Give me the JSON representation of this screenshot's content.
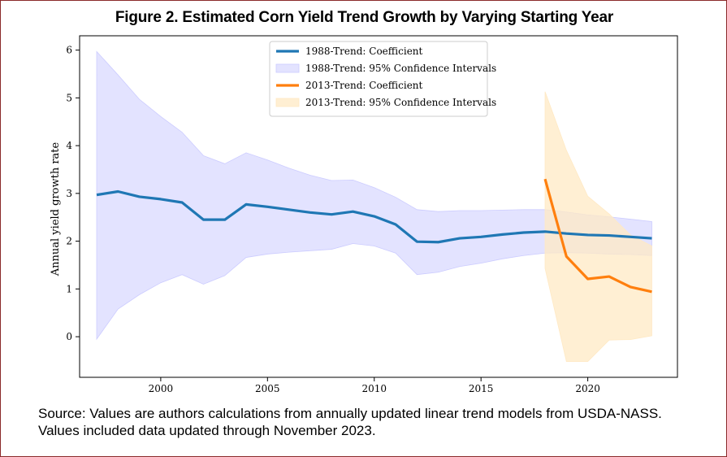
{
  "figure": {
    "title": "Figure 2. Estimated Corn Yield Trend Growth by Varying Starting Year",
    "source_line1": "Source: Values are authors calculations from annually updated linear trend models from USDA-NASS.",
    "source_line2": "Values included data updated through November 2023."
  },
  "colors": {
    "series1_line": "#1f77b4",
    "series1_band": "#ccccff",
    "series2_line": "#ff7f0e",
    "series2_band": "#ffe9c4",
    "frame_border": "#8b2a2a"
  },
  "chart_data": {
    "type": "line",
    "title": "",
    "xlabel": "",
    "ylabel": "Annual yield growth rate",
    "xlim": [
      1996.2,
      2024.2
    ],
    "ylim": [
      -0.85,
      6.3
    ],
    "xticks": [
      2000,
      2005,
      2010,
      2015,
      2020
    ],
    "yticks": [
      0,
      1,
      2,
      3,
      4,
      5,
      6
    ],
    "grid": false,
    "legend_position": "top-center",
    "legend": [
      {
        "label": "1988-Trend: Coefficient",
        "kind": "line",
        "series": 0
      },
      {
        "label": "1988-Trend: 95% Confidence Intervals",
        "kind": "band",
        "series": 0
      },
      {
        "label": "2013-Trend: Coefficient",
        "kind": "line",
        "series": 1
      },
      {
        "label": "2013-Trend: 95% Confidence Intervals",
        "kind": "band",
        "series": 1
      }
    ],
    "series": [
      {
        "name": "1988-Trend: Coefficient",
        "ci_name": "1988-Trend: 95% Confidence Intervals",
        "x": [
          1997,
          1998,
          1999,
          2000,
          2001,
          2002,
          2003,
          2004,
          2005,
          2006,
          2007,
          2008,
          2009,
          2010,
          2011,
          2012,
          2013,
          2014,
          2015,
          2016,
          2017,
          2018,
          2019,
          2020,
          2021,
          2022,
          2023
        ],
        "y": [
          2.97,
          3.04,
          2.93,
          2.88,
          2.81,
          2.45,
          2.45,
          2.77,
          2.72,
          2.66,
          2.6,
          2.56,
          2.62,
          2.52,
          2.35,
          1.99,
          1.98,
          2.06,
          2.09,
          2.14,
          2.18,
          2.2,
          2.16,
          2.13,
          2.12,
          2.09,
          2.06
        ],
        "lower": [
          -0.05,
          0.58,
          0.88,
          1.13,
          1.3,
          1.1,
          1.28,
          1.66,
          1.73,
          1.77,
          1.8,
          1.83,
          1.95,
          1.9,
          1.75,
          1.3,
          1.35,
          1.47,
          1.54,
          1.63,
          1.7,
          1.75,
          1.76,
          1.75,
          1.73,
          1.72,
          1.7
        ],
        "upper": [
          5.97,
          5.48,
          4.97,
          4.61,
          4.28,
          3.79,
          3.62,
          3.85,
          3.7,
          3.53,
          3.38,
          3.27,
          3.28,
          3.12,
          2.92,
          2.66,
          2.62,
          2.64,
          2.64,
          2.65,
          2.66,
          2.66,
          2.61,
          2.55,
          2.51,
          2.46,
          2.41
        ]
      },
      {
        "name": "2013-Trend: Coefficient",
        "ci_name": "2013-Trend: 95% Confidence Intervals",
        "x": [
          2018,
          2019,
          2020,
          2021,
          2022,
          2023
        ],
        "y": [
          3.3,
          1.68,
          1.21,
          1.26,
          1.04,
          0.94
        ],
        "lower": [
          1.43,
          -0.52,
          -0.52,
          -0.07,
          -0.06,
          0.02
        ],
        "upper": [
          5.13,
          3.9,
          2.94,
          2.57,
          2.13,
          1.9
        ]
      }
    ]
  }
}
